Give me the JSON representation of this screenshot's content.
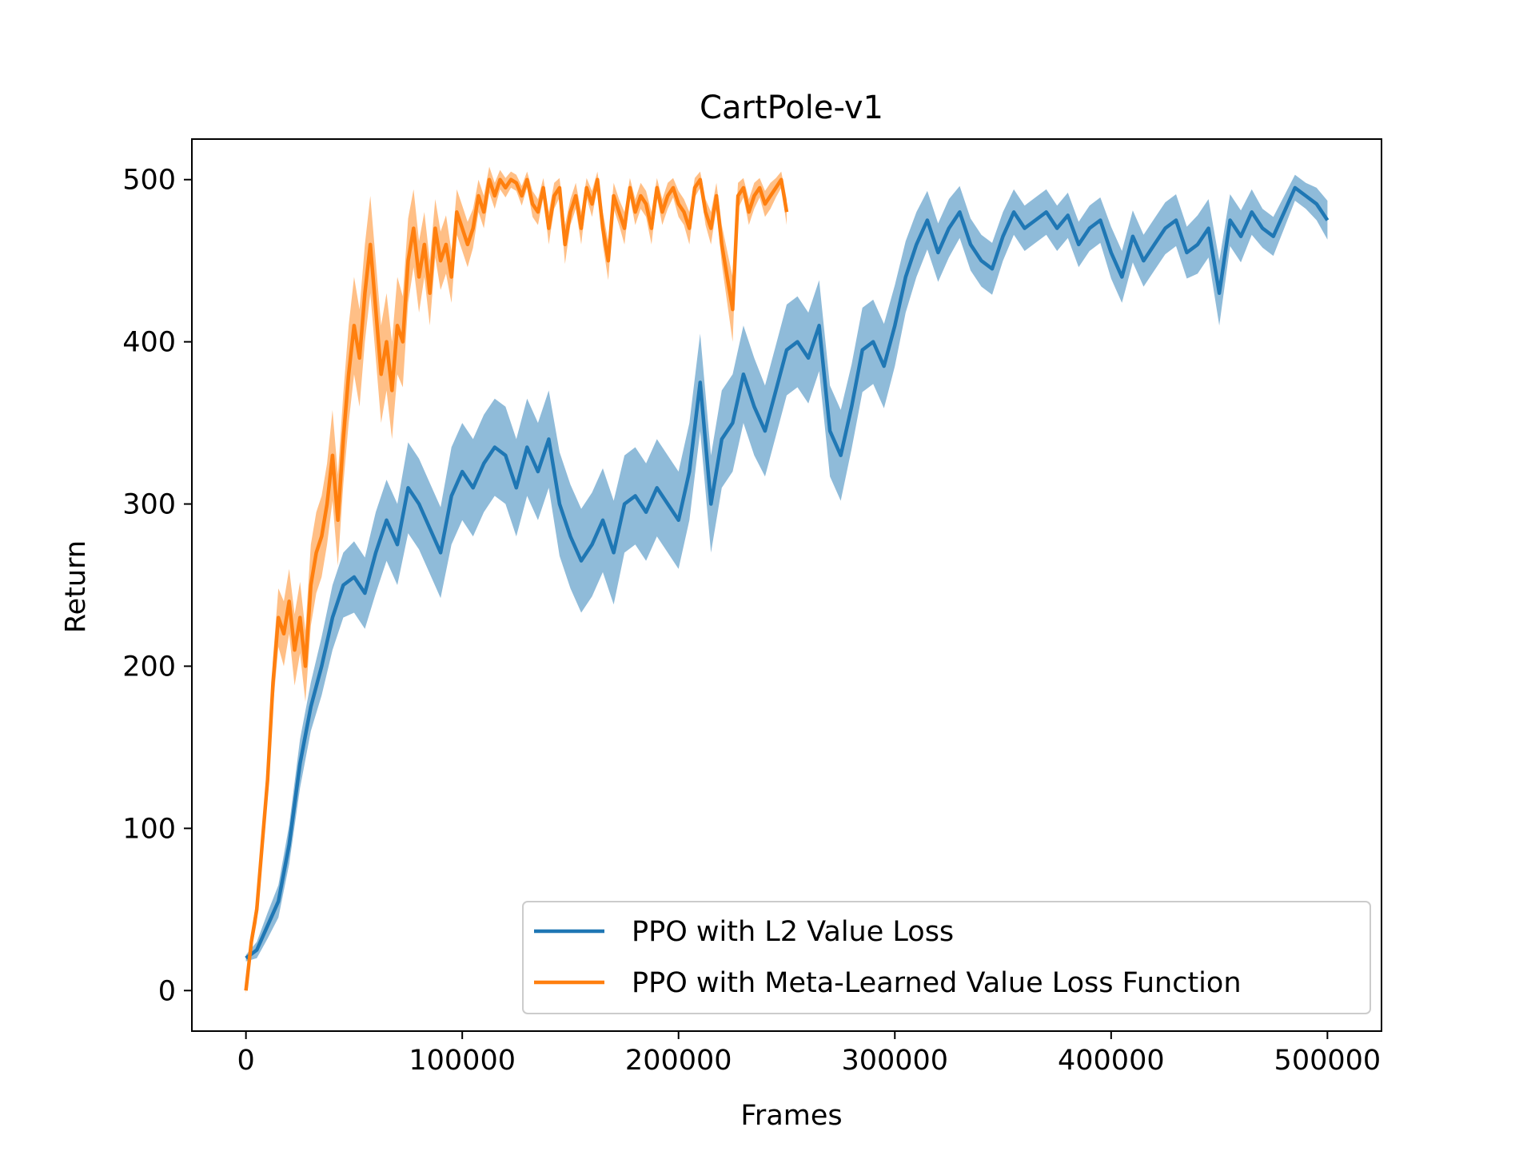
{
  "chart_data": {
    "type": "line",
    "title": "CartPole-v1",
    "xlabel": "Frames",
    "ylabel": "Return",
    "xlim": [
      -25000,
      525000
    ],
    "ylim": [
      -25,
      525
    ],
    "xticks": [
      0,
      100000,
      200000,
      300000,
      400000,
      500000
    ],
    "xtick_labels": [
      "0",
      "100000",
      "200000",
      "300000",
      "400000",
      "500000"
    ],
    "yticks": [
      0,
      100,
      200,
      300,
      400,
      500
    ],
    "ytick_labels": [
      "0",
      "100",
      "200",
      "300",
      "400",
      "500"
    ],
    "grid": false,
    "legend_position": "lower-right",
    "shaded_band": "mean ± spread",
    "series": [
      {
        "name": "PPO with L2 Value Loss",
        "color": "#1f77b4",
        "x": [
          0,
          5000,
          10000,
          15000,
          20000,
          25000,
          30000,
          35000,
          40000,
          45000,
          50000,
          55000,
          60000,
          65000,
          70000,
          75000,
          80000,
          85000,
          90000,
          95000,
          100000,
          105000,
          110000,
          115000,
          120000,
          125000,
          130000,
          135000,
          140000,
          145000,
          150000,
          155000,
          160000,
          165000,
          170000,
          175000,
          180000,
          185000,
          190000,
          195000,
          200000,
          205000,
          210000,
          215000,
          220000,
          225000,
          230000,
          235000,
          240000,
          245000,
          250000,
          255000,
          260000,
          265000,
          270000,
          275000,
          280000,
          285000,
          290000,
          295000,
          300000,
          305000,
          310000,
          315000,
          320000,
          325000,
          330000,
          335000,
          340000,
          345000,
          350000,
          355000,
          360000,
          365000,
          370000,
          375000,
          380000,
          385000,
          390000,
          395000,
          400000,
          405000,
          410000,
          415000,
          420000,
          425000,
          430000,
          435000,
          440000,
          445000,
          450000,
          455000,
          460000,
          465000,
          470000,
          475000,
          480000,
          485000,
          490000,
          495000,
          500000
        ],
        "y": [
          20,
          25,
          40,
          55,
          90,
          140,
          175,
          200,
          230,
          250,
          255,
          245,
          270,
          290,
          275,
          310,
          300,
          285,
          270,
          305,
          320,
          310,
          325,
          335,
          330,
          310,
          335,
          320,
          340,
          300,
          280,
          265,
          275,
          290,
          270,
          300,
          305,
          295,
          310,
          300,
          290,
          320,
          375,
          300,
          340,
          350,
          380,
          360,
          345,
          370,
          395,
          400,
          390,
          410,
          345,
          330,
          360,
          395,
          400,
          385,
          410,
          440,
          460,
          475,
          455,
          470,
          480,
          460,
          450,
          445,
          465,
          480,
          470,
          475,
          480,
          470,
          478,
          460,
          470,
          475,
          455,
          440,
          465,
          450,
          460,
          470,
          475,
          455,
          460,
          470,
          430,
          475,
          465,
          480,
          470,
          465,
          480,
          495,
          490,
          485,
          475
        ],
        "band": [
          2,
          5,
          8,
          10,
          12,
          15,
          15,
          18,
          20,
          20,
          22,
          22,
          25,
          25,
          25,
          28,
          28,
          28,
          28,
          30,
          30,
          30,
          30,
          30,
          30,
          30,
          30,
          30,
          30,
          32,
          32,
          32,
          32,
          32,
          32,
          30,
          30,
          30,
          30,
          30,
          30,
          30,
          30,
          30,
          30,
          30,
          30,
          30,
          28,
          28,
          28,
          28,
          28,
          28,
          28,
          28,
          26,
          26,
          26,
          26,
          25,
          22,
          20,
          18,
          18,
          18,
          16,
          16,
          16,
          16,
          15,
          14,
          14,
          14,
          14,
          14,
          14,
          14,
          14,
          14,
          16,
          16,
          16,
          16,
          16,
          16,
          16,
          16,
          18,
          18,
          20,
          16,
          16,
          14,
          12,
          12,
          10,
          8,
          8,
          10,
          12
        ]
      },
      {
        "name": "PPO with Meta-Learned Value Loss Function",
        "color": "#ff7f0e",
        "x": [
          0,
          2500,
          5000,
          7500,
          10000,
          12500,
          15000,
          17500,
          20000,
          22500,
          25000,
          27500,
          30000,
          32500,
          35000,
          37500,
          40000,
          42500,
          45000,
          47500,
          50000,
          52500,
          55000,
          57500,
          60000,
          62500,
          65000,
          67500,
          70000,
          72500,
          75000,
          77500,
          80000,
          82500,
          85000,
          87500,
          90000,
          92500,
          95000,
          97500,
          100000,
          102500,
          105000,
          107500,
          110000,
          112500,
          115000,
          117500,
          120000,
          122500,
          125000,
          127500,
          130000,
          132500,
          135000,
          137500,
          140000,
          142500,
          145000,
          147500,
          150000,
          152500,
          155000,
          157500,
          160000,
          162500,
          165000,
          167500,
          170000,
          172500,
          175000,
          177500,
          180000,
          182500,
          185000,
          187500,
          190000,
          192500,
          195000,
          197500,
          200000,
          202500,
          205000,
          207500,
          210000,
          212500,
          215000,
          217500,
          220000,
          222500,
          225000,
          227500,
          230000,
          232500,
          235000,
          237500,
          240000,
          242500,
          245000,
          247500,
          250000
        ],
        "y": [
          0,
          30,
          50,
          90,
          130,
          190,
          230,
          220,
          240,
          210,
          230,
          200,
          250,
          270,
          280,
          300,
          330,
          290,
          340,
          380,
          410,
          390,
          430,
          460,
          420,
          380,
          400,
          370,
          410,
          400,
          450,
          470,
          440,
          460,
          430,
          470,
          450,
          460,
          440,
          480,
          470,
          460,
          470,
          490,
          480,
          500,
          490,
          500,
          495,
          500,
          498,
          490,
          500,
          485,
          480,
          495,
          470,
          490,
          495,
          460,
          480,
          490,
          470,
          495,
          485,
          500,
          470,
          450,
          490,
          480,
          470,
          495,
          480,
          490,
          485,
          470,
          495,
          480,
          490,
          495,
          485,
          480,
          470,
          495,
          500,
          480,
          470,
          490,
          460,
          440,
          420,
          490,
          495,
          480,
          490,
          495,
          485,
          490,
          495,
          500,
          480
        ],
        "band": [
          2,
          5,
          8,
          10,
          12,
          15,
          18,
          20,
          20,
          22,
          22,
          22,
          25,
          25,
          25,
          25,
          28,
          28,
          28,
          30,
          30,
          30,
          30,
          30,
          30,
          30,
          30,
          30,
          30,
          28,
          26,
          24,
          22,
          20,
          20,
          18,
          18,
          18,
          16,
          14,
          14,
          14,
          12,
          10,
          10,
          8,
          8,
          6,
          6,
          5,
          5,
          6,
          5,
          8,
          8,
          6,
          10,
          8,
          6,
          12,
          8,
          8,
          10,
          6,
          8,
          5,
          10,
          12,
          8,
          8,
          10,
          6,
          8,
          8,
          8,
          10,
          6,
          8,
          8,
          6,
          8,
          8,
          10,
          6,
          5,
          8,
          10,
          8,
          12,
          16,
          20,
          8,
          6,
          8,
          8,
          6,
          8,
          8,
          6,
          5,
          8
        ]
      }
    ]
  }
}
